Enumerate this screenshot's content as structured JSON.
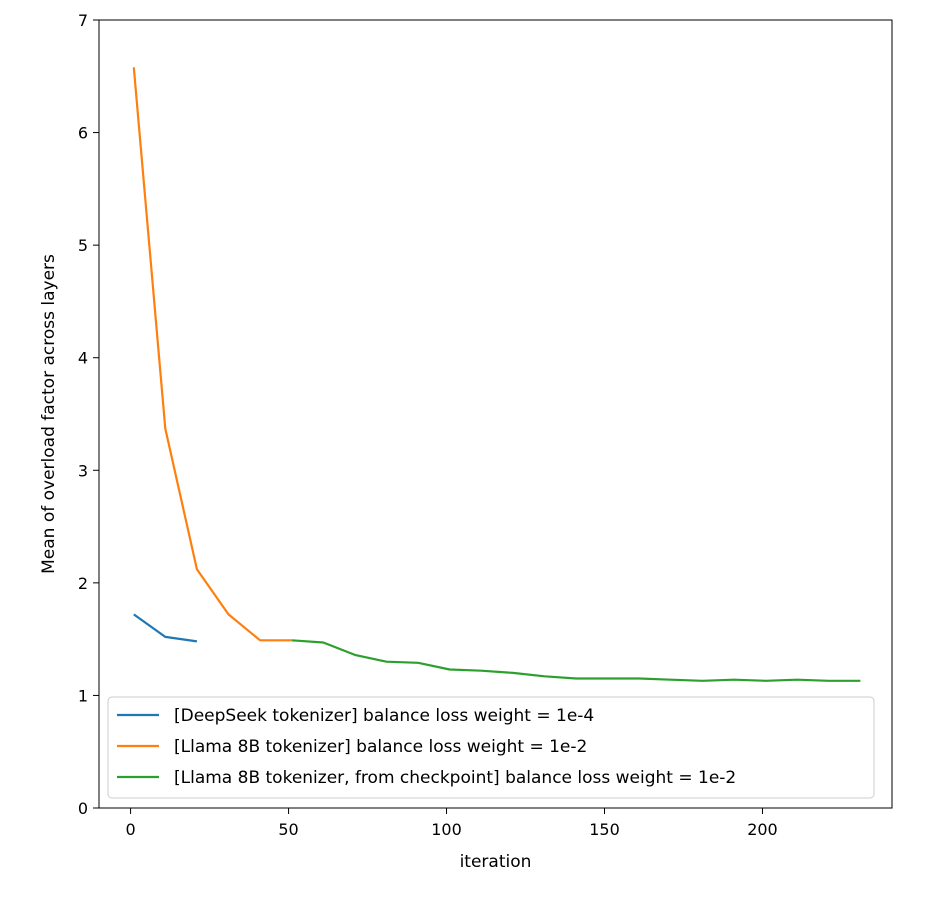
{
  "chart_data": {
    "type": "line",
    "title": "",
    "xlabel": "iteration",
    "ylabel": "Mean of overload factor across layers",
    "xlim": [
      -10,
      241
    ],
    "ylim": [
      0,
      7
    ],
    "xticks": [
      0,
      50,
      100,
      150,
      200
    ],
    "xtick_labels": [
      "0",
      "50",
      "100",
      "150",
      "200"
    ],
    "yticks": [
      0,
      1,
      2,
      3,
      4,
      5,
      6,
      7
    ],
    "ytick_labels": [
      "0",
      "1",
      "2",
      "3",
      "4",
      "5",
      "6",
      "7"
    ],
    "grid": false,
    "legend_position": "lower-left",
    "series": [
      {
        "name": "[DeepSeek tokenizer] balance loss weight = 1e-4",
        "color": "#1f77b4",
        "x": [
          1,
          11,
          21
        ],
        "y": [
          1.72,
          1.52,
          1.48
        ]
      },
      {
        "name": "[Llama 8B tokenizer] balance loss weight = 1e-2",
        "color": "#ff7f0e",
        "x": [
          1,
          11,
          21,
          31,
          41,
          51
        ],
        "y": [
          6.58,
          3.37,
          2.12,
          1.72,
          1.49,
          1.49
        ]
      },
      {
        "name": "[Llama 8B tokenizer, from checkpoint] balance loss weight = 1e-2",
        "color": "#2ca02c",
        "x": [
          51,
          61,
          71,
          81,
          91,
          101,
          111,
          121,
          131,
          141,
          151,
          161,
          171,
          181,
          191,
          201,
          211,
          221,
          231
        ],
        "y": [
          1.49,
          1.47,
          1.36,
          1.3,
          1.29,
          1.23,
          1.22,
          1.2,
          1.17,
          1.15,
          1.15,
          1.15,
          1.14,
          1.13,
          1.14,
          1.13,
          1.14,
          1.13,
          1.13
        ]
      }
    ]
  }
}
